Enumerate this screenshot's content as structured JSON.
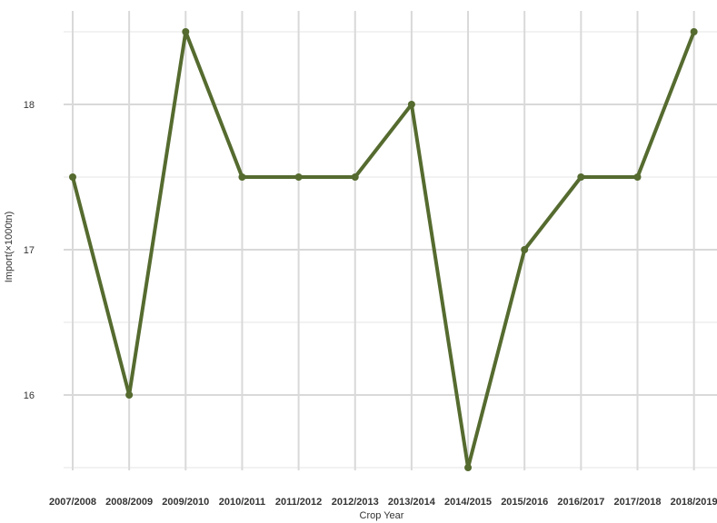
{
  "chart_data": {
    "type": "line",
    "title": "",
    "xlabel": "Crop Year",
    "ylabel": "Import(×1000tn)",
    "categories": [
      "2007/2008",
      "2008/2009",
      "2009/2010",
      "2010/2011",
      "2011/2012",
      "2012/2013",
      "2013/2014",
      "2014/2015",
      "2015/2016",
      "2016/2017",
      "2017/2018",
      "2018/2019"
    ],
    "series": [
      {
        "values": [
          17.5,
          16.0,
          18.5,
          17.5,
          17.5,
          17.5,
          18.0,
          15.5,
          17.0,
          17.5,
          17.5,
          18.5
        ]
      }
    ],
    "yticks": [
      16,
      17,
      18
    ],
    "ylim": [
      15.5,
      18.5
    ],
    "grid": true,
    "legend": "none",
    "colors": {
      "line": "#556b2f",
      "grid_major": "#d9d9d9",
      "grid_minor": "#ebebeb",
      "text": "#333333"
    }
  }
}
